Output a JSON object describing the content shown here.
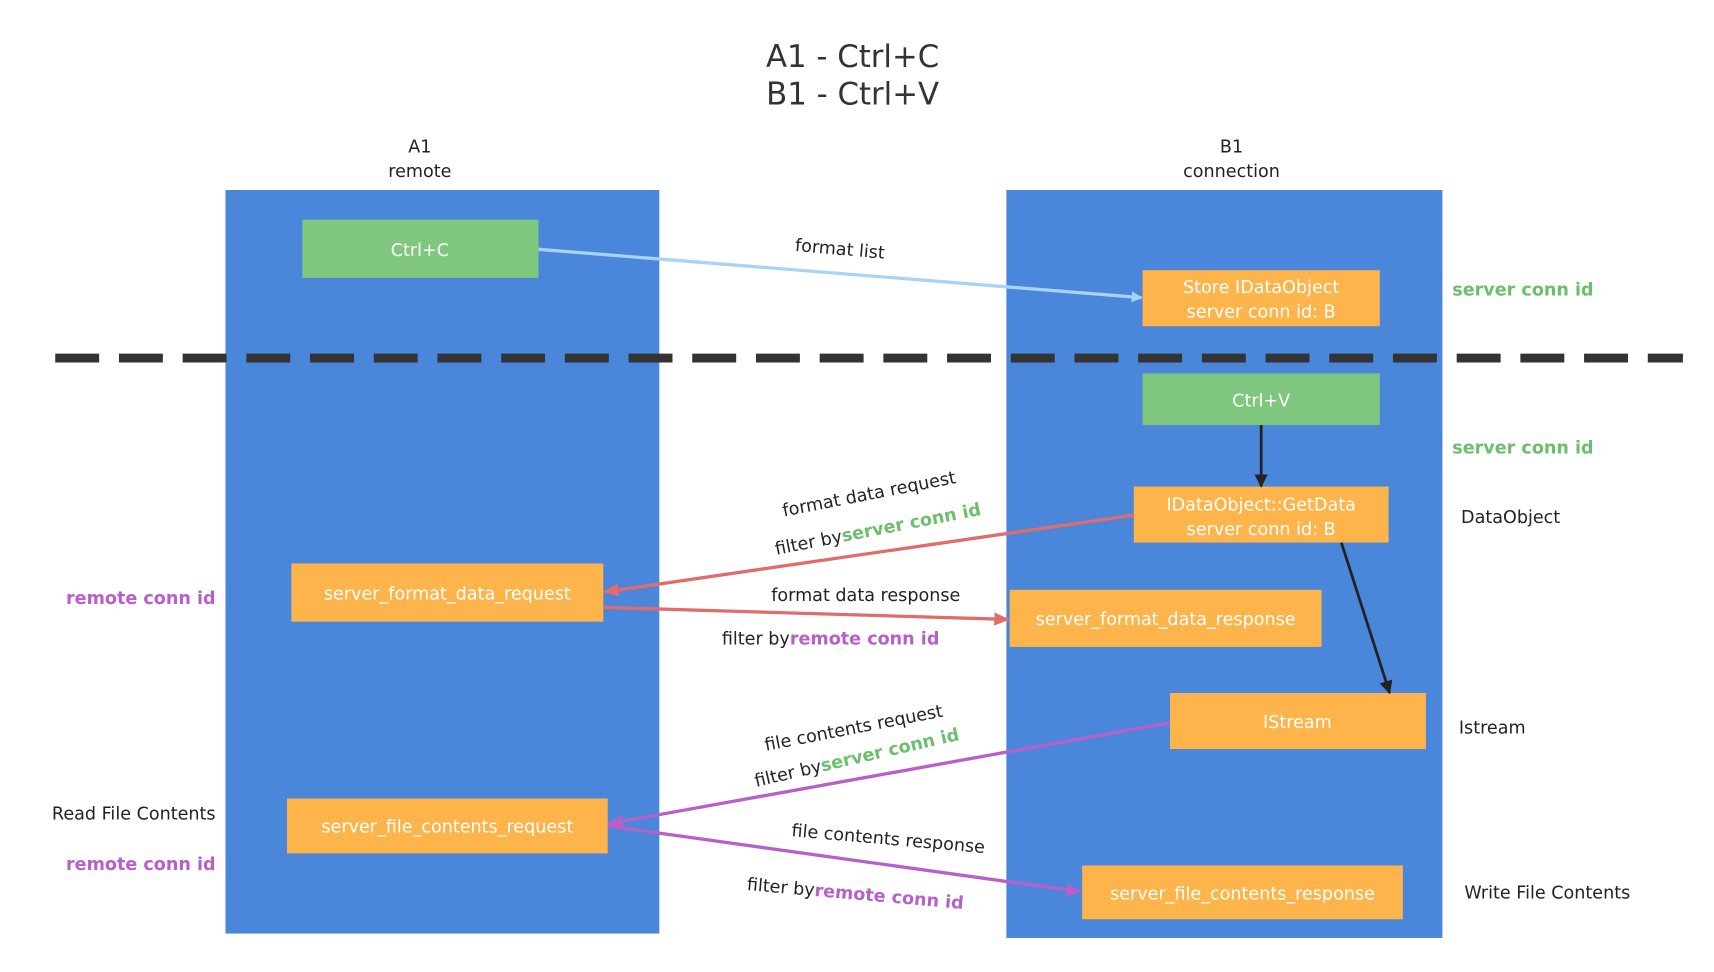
{
  "title": {
    "line1": "A1 - Ctrl+C",
    "line2": "B1 - Ctrl+V"
  },
  "columns": [
    {
      "name": "A1",
      "role": "remote"
    },
    {
      "name": "B1",
      "role": "connection"
    }
  ],
  "boxes": {
    "ctrl_c": "Ctrl+C",
    "store_line1": "Store IDataObject",
    "store_line2": "server conn id: B",
    "ctrl_v": "Ctrl+V",
    "getdata_line1": "IDataObject::GetData",
    "getdata_line2": "server conn id: B",
    "format_request": "server_format_data_request",
    "format_response": "server_format_data_response",
    "istream": "IStream",
    "file_request": "server_file_contents_request",
    "file_response": "server_file_contents_response"
  },
  "arrows": {
    "format_list": "format list",
    "format_data_request": "format data request",
    "format_data_response": "format data response",
    "file_contents_request": "file contents request",
    "file_contents_response": "file contents response",
    "filter_by": "filter by",
    "server_conn_id": "server conn id",
    "remote_conn_id": "remote conn id"
  },
  "side_labels": {
    "server_conn_id_1": "server conn id",
    "server_conn_id_2": "server conn id",
    "data_object": "DataObject",
    "istream": "Istream",
    "write_file_contents": "Write File Contents",
    "remote_conn_id_1": "remote conn id",
    "read_file_contents": "Read File Contents",
    "remote_conn_id_2": "remote conn id"
  },
  "colors": {
    "column": "#4a86d9",
    "green_box": "#7fc67f",
    "orange_box": "#fdb44b",
    "server_id_text": "#6cbf6c",
    "remote_id_text": "#b660c8",
    "format_arrow": "#e06c6c",
    "file_arrow": "#b660c8",
    "format_list_arrow": "#a9d3f5"
  }
}
